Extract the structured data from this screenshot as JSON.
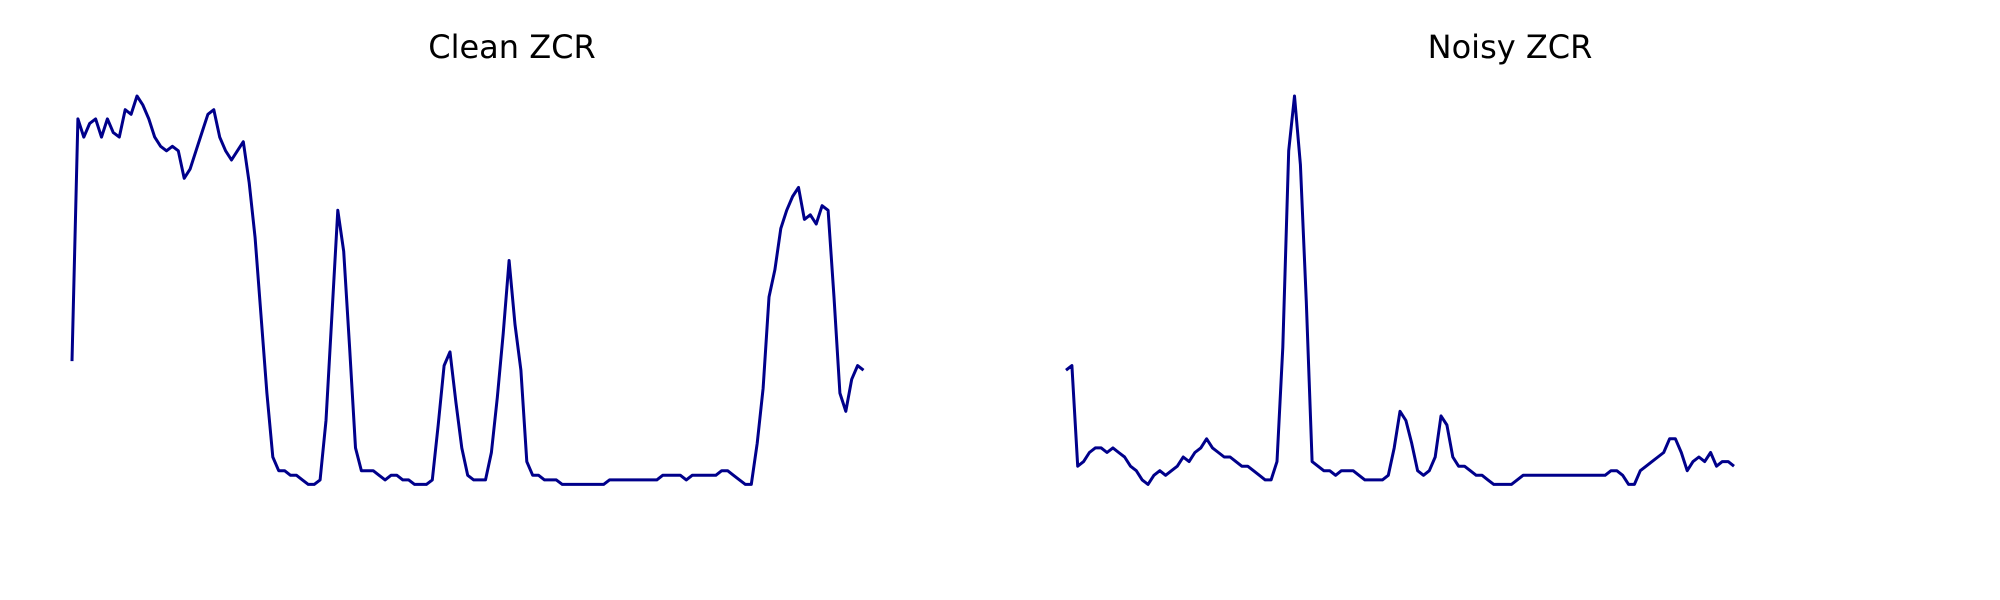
{
  "line_color": "#00008b",
  "chart_data": [
    {
      "type": "line",
      "title": "Clean ZCR",
      "xlabel": "",
      "ylabel": "",
      "grid": false,
      "axes_visible": false,
      "xlim": [
        0,
        150
      ],
      "ylim": [
        0,
        1.0
      ],
      "series": [
        {
          "values": [
            0.42,
            0.95,
            0.91,
            0.94,
            0.95,
            0.91,
            0.95,
            0.92,
            0.91,
            0.97,
            0.96,
            1.0,
            0.98,
            0.95,
            0.91,
            0.89,
            0.88,
            0.89,
            0.88,
            0.82,
            0.84,
            0.88,
            0.92,
            0.96,
            0.97,
            0.91,
            0.88,
            0.86,
            0.88,
            0.9,
            0.81,
            0.69,
            0.52,
            0.35,
            0.21,
            0.18,
            0.18,
            0.17,
            0.17,
            0.16,
            0.15,
            0.15,
            0.16,
            0.29,
            0.52,
            0.75,
            0.66,
            0.45,
            0.23,
            0.18,
            0.18,
            0.18,
            0.17,
            0.16,
            0.17,
            0.17,
            0.16,
            0.16,
            0.15,
            0.15,
            0.15,
            0.16,
            0.28,
            0.41,
            0.44,
            0.33,
            0.23,
            0.17,
            0.16,
            0.16,
            0.16,
            0.22,
            0.34,
            0.48,
            0.64,
            0.5,
            0.4,
            0.2,
            0.17,
            0.17,
            0.16,
            0.16,
            0.16,
            0.15,
            0.15,
            0.15,
            0.15,
            0.15,
            0.15,
            0.15,
            0.15,
            0.16,
            0.16,
            0.16,
            0.16,
            0.16,
            0.16,
            0.16,
            0.16,
            0.16,
            0.17,
            0.17,
            0.17,
            0.17,
            0.16,
            0.17,
            0.17,
            0.17,
            0.17,
            0.17,
            0.18,
            0.18,
            0.17,
            0.16,
            0.15,
            0.15,
            0.24,
            0.36,
            0.56,
            0.62,
            0.71,
            0.75,
            0.78,
            0.8,
            0.73,
            0.74,
            0.72,
            0.76,
            0.75,
            0.56,
            0.35,
            0.31,
            0.38,
            0.41,
            0.4
          ]
        }
      ]
    },
    {
      "type": "line",
      "title": "Noisy ZCR",
      "xlabel": "",
      "ylabel": "",
      "grid": false,
      "axes_visible": false,
      "xlim": [
        0,
        150
      ],
      "ylim": [
        0,
        1.0
      ],
      "series": [
        {
          "values": [
            0.4,
            0.41,
            0.19,
            0.2,
            0.22,
            0.23,
            0.23,
            0.22,
            0.23,
            0.22,
            0.21,
            0.19,
            0.18,
            0.16,
            0.15,
            0.17,
            0.18,
            0.17,
            0.18,
            0.19,
            0.21,
            0.2,
            0.22,
            0.23,
            0.25,
            0.23,
            0.22,
            0.21,
            0.21,
            0.2,
            0.19,
            0.19,
            0.18,
            0.17,
            0.16,
            0.16,
            0.2,
            0.45,
            0.88,
            1.0,
            0.85,
            0.55,
            0.2,
            0.19,
            0.18,
            0.18,
            0.17,
            0.18,
            0.18,
            0.18,
            0.17,
            0.16,
            0.16,
            0.16,
            0.16,
            0.17,
            0.23,
            0.31,
            0.29,
            0.24,
            0.18,
            0.17,
            0.18,
            0.21,
            0.3,
            0.28,
            0.21,
            0.19,
            0.19,
            0.18,
            0.17,
            0.17,
            0.16,
            0.15,
            0.15,
            0.15,
            0.15,
            0.16,
            0.17,
            0.17,
            0.17,
            0.17,
            0.17,
            0.17,
            0.17,
            0.17,
            0.17,
            0.17,
            0.17,
            0.17,
            0.17,
            0.17,
            0.17,
            0.18,
            0.18,
            0.17,
            0.15,
            0.15,
            0.18,
            0.19,
            0.2,
            0.21,
            0.22,
            0.25,
            0.25,
            0.22,
            0.18,
            0.2,
            0.21,
            0.2,
            0.22,
            0.19,
            0.2,
            0.2,
            0.19
          ]
        }
      ]
    }
  ]
}
